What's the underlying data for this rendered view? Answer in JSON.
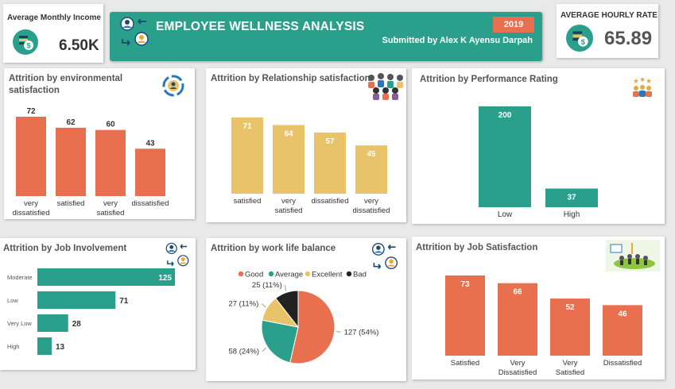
{
  "kpis": {
    "income": {
      "label": "Average  Monthly Income",
      "value": "6.50K"
    },
    "hourly": {
      "label": "AVERAGE HOURLY RATE",
      "value": "65.89"
    }
  },
  "banner": {
    "title": "EMPLOYEE WELLNESS ANALYSIS",
    "year": "2019",
    "subtitle": "Submitted by Alex K Ayensu Darpah"
  },
  "colors": {
    "teal": "#2aa08c",
    "coral": "#e8704f",
    "mustard": "#e8c36a",
    "navy": "#1a4a6e",
    "dark": "#222222"
  },
  "icons": {
    "income": "money-bag-icon",
    "hourly": "money-bag-icon",
    "banner": "employee-swap-icon",
    "environment": "globe-cycle-icon",
    "relationship": "people-group-icon",
    "performance": "rating-stars-icon",
    "involvement": "employee-swap-icon",
    "worklife": "employee-swap-icon",
    "jobsat": "meeting-icon"
  },
  "chart_data": [
    {
      "id": "env",
      "type": "bar",
      "title": "Attrition by environmental satisfaction",
      "categories": [
        "very dissatisfied",
        "satisfied",
        "very satisfied",
        "dissatisfied"
      ],
      "values": [
        72,
        62,
        60,
        43
      ],
      "color": "#e8704f"
    },
    {
      "id": "rel",
      "type": "bar",
      "title": "Attrition by Relationship satisfaction",
      "categories": [
        "satisfied",
        "very satisfied",
        "dissatisfied",
        "very dissatisfied"
      ],
      "values": [
        71,
        64,
        57,
        45
      ],
      "color": "#e8c36a"
    },
    {
      "id": "perf",
      "type": "bar",
      "title": "Attrition by Performance Rating",
      "categories": [
        "Low",
        "High"
      ],
      "values": [
        200,
        37
      ],
      "color": "#2aa08c"
    },
    {
      "id": "inv",
      "type": "bar",
      "orientation": "horizontal",
      "title": "Attrition by Job Involvement",
      "categories": [
        "Moderate",
        "Low",
        "Very Low",
        "High"
      ],
      "values": [
        125,
        71,
        28,
        13
      ],
      "color": "#2aa08c"
    },
    {
      "id": "wlb",
      "type": "pie",
      "title": "Attrition by work life balance",
      "legend": [
        "Good",
        "Average",
        "Excellent",
        "Bad"
      ],
      "slices": [
        {
          "label": "Good",
          "value": 127,
          "text": "127 (54%)",
          "color": "#e8704f"
        },
        {
          "label": "Average",
          "value": 58,
          "text": "58 (24%)",
          "color": "#2aa08c"
        },
        {
          "label": "Excellent",
          "value": 27,
          "text": "27 (11%)",
          "color": "#e8c36a"
        },
        {
          "label": "Bad",
          "value": 25,
          "text": "25 (11%)",
          "color": "#222222"
        }
      ]
    },
    {
      "id": "job",
      "type": "bar",
      "title": "Attrition by Job Satisfaction",
      "categories": [
        "Satisfied",
        "Very Dissatisfied",
        "Very Satisfied",
        "Dissatisfied"
      ],
      "values": [
        73,
        66,
        52,
        46
      ],
      "color": "#e8704f"
    }
  ]
}
